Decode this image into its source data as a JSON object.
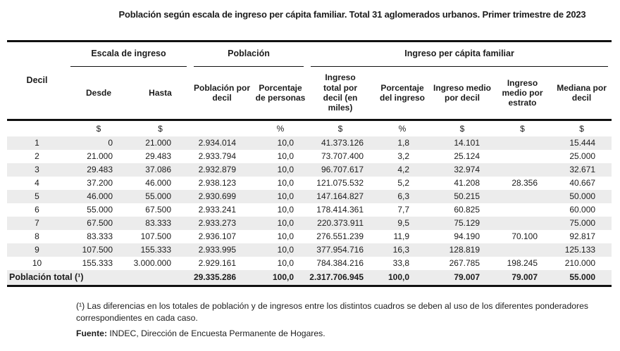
{
  "page": {
    "title": "Población según escala de ingreso per cápita familiar. Total 31 aglomerados urbanos. Primer trimestre de 2023"
  },
  "table": {
    "corner": "Decil",
    "groups": {
      "escala": "Escala de ingreso",
      "poblacion": "Población",
      "ingreso": "Ingreso per cápita familiar"
    },
    "columns": {
      "desde": "Desde",
      "hasta": "Hasta",
      "poblacion_decil": "Población por decil",
      "pct_personas": "Porcentaje de personas",
      "ingreso_total": "Ingreso total por decil (en miles)",
      "pct_ingreso": "Porcentaje del ingreso",
      "ingreso_medio_decil": "Ingreso medio por decil",
      "ingreso_medio_estrato": "Ingreso medio por estrato",
      "mediana": "Mediana por decil"
    },
    "units": [
      "",
      "$",
      "$",
      "",
      "%",
      "$",
      "%",
      "$",
      "$",
      "$"
    ],
    "rows": [
      [
        "1",
        "0",
        "21.000",
        "2.934.014",
        "10,0",
        "41.373.126",
        "1,8",
        "14.101",
        "",
        "15.444"
      ],
      [
        "2",
        "21.000",
        "29.483",
        "2.933.794",
        "10,0",
        "73.707.400",
        "3,2",
        "25.124",
        "",
        "25.000"
      ],
      [
        "3",
        "29.483",
        "37.086",
        "2.932.879",
        "10,0",
        "96.707.617",
        "4,2",
        "32.974",
        "",
        "32.671"
      ],
      [
        "4",
        "37.200",
        "46.000",
        "2.938.123",
        "10,0",
        "121.075.532",
        "5,2",
        "41.208",
        "28.356",
        "40.667"
      ],
      [
        "5",
        "46.000",
        "55.000",
        "2.930.699",
        "10,0",
        "147.164.827",
        "6,3",
        "50.215",
        "",
        "50.000"
      ],
      [
        "6",
        "55.000",
        "67.500",
        "2.933.241",
        "10,0",
        "178.414.361",
        "7,7",
        "60.825",
        "",
        "60.000"
      ],
      [
        "7",
        "67.500",
        "83.333",
        "2.933.273",
        "10,0",
        "220.373.911",
        "9,5",
        "75.129",
        "",
        "75.000"
      ],
      [
        "8",
        "83.333",
        "107.500",
        "2.936.107",
        "10,0",
        "276.551.239",
        "11,9",
        "94.190",
        "70.100",
        "92.817"
      ],
      [
        "9",
        "107.500",
        "155.333",
        "2.933.995",
        "10,0",
        "377.954.716",
        "16,3",
        "128.819",
        "",
        "125.133"
      ],
      [
        "10",
        "155.333",
        "3.000.000",
        "2.929.161",
        "10,0",
        "784.384.216",
        "33,8",
        "267.785",
        "198.245",
        "210.000"
      ]
    ],
    "total": {
      "label": "Población total (¹)",
      "cells": [
        "29.335.286",
        "100,0",
        "2.317.706.945",
        "100,0",
        "79.007",
        "79.007",
        "55.000"
      ]
    }
  },
  "notes": {
    "footnote": "(¹) Las diferencias en los totales de población y de ingresos entre los distintos cuadros se deben al uso de los diferentes ponderadores correspondientes en cada caso.",
    "source_label": "Fuente:",
    "source": " INDEC, Dirección de Encuesta Permanente de Hogares."
  }
}
